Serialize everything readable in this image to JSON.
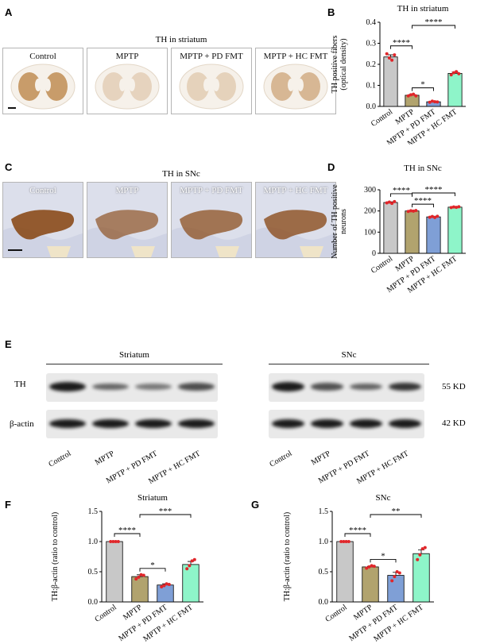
{
  "panels": {
    "A": {
      "letter": "A",
      "title": "TH in striatum",
      "groups": [
        "Control",
        "MPTP",
        "MPTP + PD FMT",
        "MPTP + HC FMT"
      ],
      "stain_intensity": [
        0.85,
        0.15,
        0.18,
        0.5
      ]
    },
    "B": {
      "letter": "B"
    },
    "C": {
      "letter": "C",
      "title": "TH in SNc",
      "groups": [
        "Control",
        "MPTP",
        "MPTP + PD FMT",
        "MPTP + HC FMT"
      ],
      "stain_intensity": [
        0.95,
        0.55,
        0.65,
        0.75
      ]
    },
    "D": {
      "letter": "D"
    },
    "E": {
      "letter": "E",
      "regions": [
        "Striatum",
        "SNc"
      ],
      "rows": [
        "TH",
        "β-actin"
      ],
      "kd": [
        "55 KD",
        "42 KD"
      ],
      "lanes": [
        "Control",
        "MPTP",
        "MPTP + PD FMT",
        "MPTP + HC FMT"
      ],
      "th_band_strength": {
        "Striatum": [
          1.0,
          0.42,
          0.28,
          0.62
        ],
        "SNc": [
          1.0,
          0.58,
          0.44,
          0.8
        ]
      }
    },
    "F": {
      "letter": "F"
    },
    "G": {
      "letter": "G"
    }
  },
  "chart_data": [
    {
      "id": "B",
      "type": "bar",
      "title": "TH in striatum",
      "ylabel_lines": [
        "TH positive fibers",
        "(optical density)"
      ],
      "categories": [
        "Control",
        "MPTP",
        "MPTP + PD FMT",
        "MPTP + HC FMT"
      ],
      "values": [
        0.235,
        0.053,
        0.022,
        0.157
      ],
      "errors": [
        0.01,
        0.004,
        0.003,
        0.006
      ],
      "points": [
        [
          0.25,
          0.23,
          0.22,
          0.245
        ],
        [
          0.05,
          0.055,
          0.058,
          0.05
        ],
        [
          0.02,
          0.025,
          0.022,
          0.021
        ],
        [
          0.15,
          0.16,
          0.165,
          0.155
        ]
      ],
      "colors": [
        "#c8c8c8",
        "#b1a36e",
        "#7f9fd6",
        "#8ef5c9"
      ],
      "ylim": [
        0,
        0.4
      ],
      "yticks": [
        "0.0",
        "0.1",
        "0.2",
        "0.3",
        "0.4"
      ],
      "significance": [
        {
          "from": 0,
          "to": 1,
          "label": "****"
        },
        {
          "from": 1,
          "to": 2,
          "label": "*"
        },
        {
          "from": 1,
          "to": 3,
          "label": "****"
        }
      ]
    },
    {
      "id": "D",
      "type": "bar",
      "title": "TH in SNc",
      "ylabel_lines": [
        "Number of TH positive",
        "neurons"
      ],
      "categories": [
        "Control",
        "MPTP",
        "MPTP + PD FMT",
        "MPTP + HC FMT"
      ],
      "values": [
        240,
        200,
        172,
        218
      ],
      "errors": [
        3,
        2,
        3,
        2
      ],
      "points": [
        [
          238,
          242,
          236,
          244
        ],
        [
          198,
          201,
          199,
          202
        ],
        [
          170,
          174,
          169,
          175
        ],
        [
          216,
          219,
          217,
          220
        ]
      ],
      "colors": [
        "#c8c8c8",
        "#b1a36e",
        "#7f9fd6",
        "#8ef5c9"
      ],
      "ylim": [
        0,
        300
      ],
      "yticks": [
        "0",
        "100",
        "200",
        "300"
      ],
      "significance": [
        {
          "from": 0,
          "to": 1,
          "label": "****"
        },
        {
          "from": 1,
          "to": 2,
          "label": "****"
        },
        {
          "from": 1,
          "to": 3,
          "label": "****"
        }
      ]
    },
    {
      "id": "F",
      "type": "bar",
      "title": "Striatum",
      "ylabel_lines": [
        "TH:β-actin (ratio to control)"
      ],
      "categories": [
        "Control",
        "MPTP",
        "MPTP + PD FMT",
        "MPTP + HC FMT"
      ],
      "values": [
        1.0,
        0.42,
        0.28,
        0.62
      ],
      "errors": [
        0.005,
        0.03,
        0.02,
        0.05
      ],
      "points": [
        [
          1.0,
          1.0,
          1.0,
          1.0
        ],
        [
          0.38,
          0.41,
          0.45,
          0.44
        ],
        [
          0.25,
          0.27,
          0.3,
          0.29
        ],
        [
          0.55,
          0.6,
          0.68,
          0.7
        ]
      ],
      "colors": [
        "#c8c8c8",
        "#b1a36e",
        "#7f9fd6",
        "#8ef5c9"
      ],
      "ylim": [
        0,
        1.5
      ],
      "yticks": [
        "0.0",
        "0.5",
        "1.0",
        "1.5"
      ],
      "significance": [
        {
          "from": 0,
          "to": 1,
          "label": "****"
        },
        {
          "from": 1,
          "to": 2,
          "label": "*"
        },
        {
          "from": 1,
          "to": 3,
          "label": "***"
        }
      ]
    },
    {
      "id": "G",
      "type": "bar",
      "title": "SNc",
      "ylabel_lines": [
        "TH:β-actin (ratio to control)"
      ],
      "categories": [
        "Control",
        "MPTP",
        "MPTP + PD FMT",
        "MPTP + HC FMT"
      ],
      "values": [
        1.0,
        0.58,
        0.44,
        0.8
      ],
      "errors": [
        0.005,
        0.01,
        0.05,
        0.06
      ],
      "points": [
        [
          1.0,
          1.0,
          1.0,
          1.0
        ],
        [
          0.56,
          0.58,
          0.6,
          0.59
        ],
        [
          0.35,
          0.42,
          0.5,
          0.48
        ],
        [
          0.7,
          0.78,
          0.88,
          0.9
        ]
      ],
      "colors": [
        "#c8c8c8",
        "#b1a36e",
        "#7f9fd6",
        "#8ef5c9"
      ],
      "ylim": [
        0,
        1.5
      ],
      "yticks": [
        "0.0",
        "0.5",
        "1.0",
        "1.5"
      ],
      "significance": [
        {
          "from": 0,
          "to": 1,
          "label": "****"
        },
        {
          "from": 1,
          "to": 2,
          "label": "*"
        },
        {
          "from": 1,
          "to": 3,
          "label": "**"
        }
      ]
    }
  ]
}
